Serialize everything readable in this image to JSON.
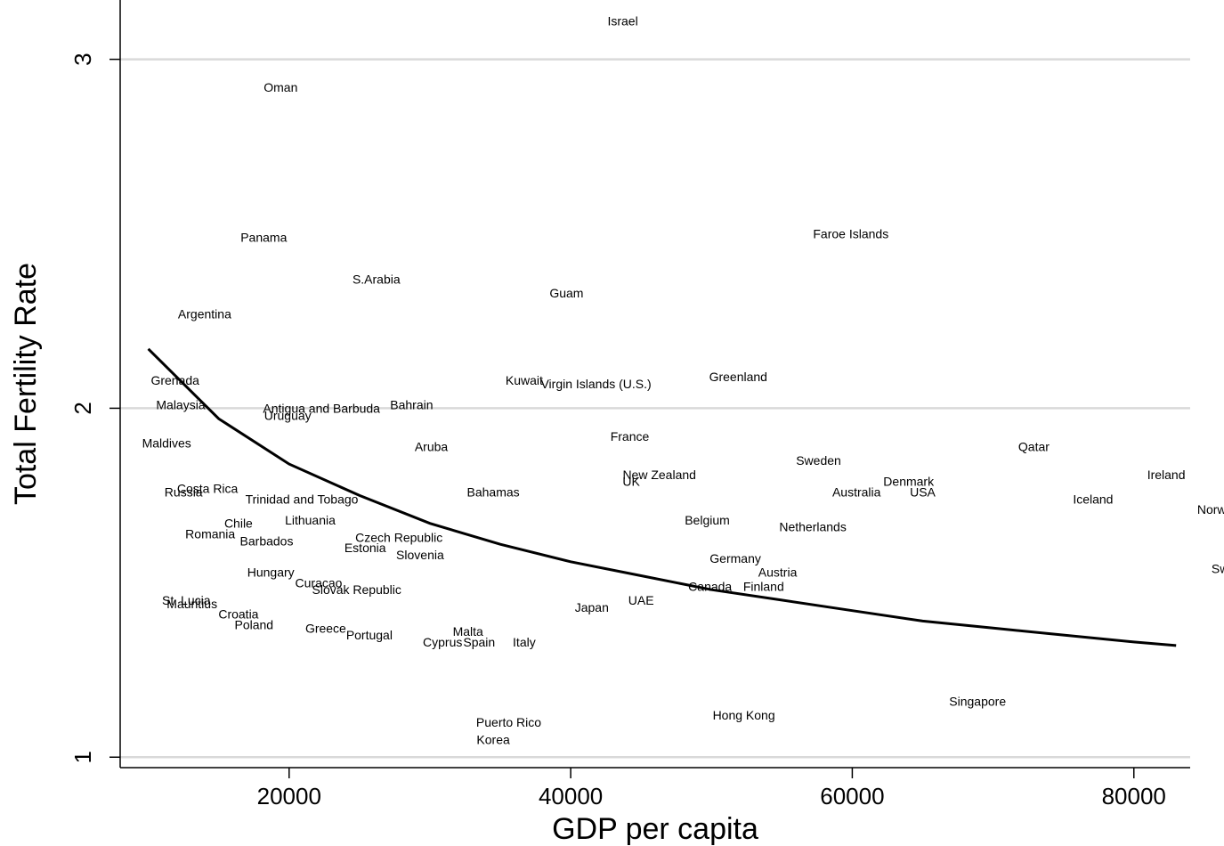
{
  "chart_data": {
    "type": "scatter",
    "xlabel": "GDP per capita",
    "ylabel": "Total Fertility Rate",
    "xlim": [
      8000,
      84000
    ],
    "ylim": [
      0.97,
      3.17
    ],
    "xticks": [
      20000,
      40000,
      60000,
      80000
    ],
    "yticks": [
      1,
      2,
      3
    ],
    "grid": "horizontal",
    "colors": {
      "axis": "#000000",
      "grid": "#d9d9d9",
      "line": "#000000",
      "text": "#000000"
    },
    "points": [
      {
        "label": "Israel",
        "x": 43700,
        "y": 3.11
      },
      {
        "label": "Oman",
        "x": 19400,
        "y": 2.92
      },
      {
        "label": "Panama",
        "x": 18200,
        "y": 2.49
      },
      {
        "label": "Faroe Islands",
        "x": 59900,
        "y": 2.5
      },
      {
        "label": "S.Arabia",
        "x": 26200,
        "y": 2.37
      },
      {
        "label": "Guam",
        "x": 39700,
        "y": 2.33
      },
      {
        "label": "Argentina",
        "x": 14000,
        "y": 2.27
      },
      {
        "label": "Grenada",
        "x": 11900,
        "y": 2.08
      },
      {
        "label": "Kuwait",
        "x": 36700,
        "y": 2.08
      },
      {
        "label": "Virgin Islands (U.S.)",
        "x": 41800,
        "y": 2.07
      },
      {
        "label": "Greenland",
        "x": 51900,
        "y": 2.09
      },
      {
        "label": "Malaysia",
        "x": 12300,
        "y": 2.01
      },
      {
        "label": "Antigua and Barbuda",
        "x": 22300,
        "y": 2.0
      },
      {
        "label": "Bahrain",
        "x": 28700,
        "y": 2.01
      },
      {
        "label": "Uruguay",
        "x": 19900,
        "y": 1.98
      },
      {
        "label": "Maldives",
        "x": 11300,
        "y": 1.9
      },
      {
        "label": "France",
        "x": 44200,
        "y": 1.92
      },
      {
        "label": "Aruba",
        "x": 30100,
        "y": 1.89
      },
      {
        "label": "Qatar",
        "x": 72900,
        "y": 1.89
      },
      {
        "label": "Sweden",
        "x": 57600,
        "y": 1.85
      },
      {
        "label": "New Zealand",
        "x": 46300,
        "y": 1.81
      },
      {
        "label": "Ireland",
        "x": 82300,
        "y": 1.81
      },
      {
        "label": "UK",
        "x": 44300,
        "y": 1.79
      },
      {
        "label": "Denmark",
        "x": 64000,
        "y": 1.79
      },
      {
        "label": "Costa Rica",
        "x": 14200,
        "y": 1.77
      },
      {
        "label": "Australia",
        "x": 60300,
        "y": 1.76
      },
      {
        "label": "USA",
        "x": 65000,
        "y": 1.76
      },
      {
        "label": "Russia",
        "x": 12500,
        "y": 1.76
      },
      {
        "label": "Bahamas",
        "x": 34500,
        "y": 1.76
      },
      {
        "label": "Trinidad and Tobago",
        "x": 20900,
        "y": 1.74
      },
      {
        "label": "Iceland",
        "x": 77100,
        "y": 1.74
      },
      {
        "label": "Lithuania",
        "x": 21500,
        "y": 1.68
      },
      {
        "label": "Norway",
        "x": 86000,
        "y": 1.71
      },
      {
        "label": "Chile",
        "x": 16400,
        "y": 1.67
      },
      {
        "label": "Belgium",
        "x": 49700,
        "y": 1.68
      },
      {
        "label": "Netherlands",
        "x": 57200,
        "y": 1.66
      },
      {
        "label": "Romania",
        "x": 14400,
        "y": 1.64
      },
      {
        "label": "Czech Republic",
        "x": 27800,
        "y": 1.63
      },
      {
        "label": "Barbados",
        "x": 18400,
        "y": 1.62
      },
      {
        "label": "Estonia",
        "x": 25400,
        "y": 1.6
      },
      {
        "label": "Slovenia",
        "x": 29300,
        "y": 1.58
      },
      {
        "label": "Germany",
        "x": 51700,
        "y": 1.57
      },
      {
        "label": "Switzerland",
        "x": 87800,
        "y": 1.54
      },
      {
        "label": "Hungary",
        "x": 18700,
        "y": 1.53
      },
      {
        "label": "Austria",
        "x": 54700,
        "y": 1.53
      },
      {
        "label": "Curacao",
        "x": 22100,
        "y": 1.5
      },
      {
        "label": "Canada",
        "x": 49900,
        "y": 1.49
      },
      {
        "label": "Finland",
        "x": 53700,
        "y": 1.49
      },
      {
        "label": "Slovak Republic",
        "x": 24800,
        "y": 1.48
      },
      {
        "label": "St. Lucia",
        "x": 12700,
        "y": 1.45
      },
      {
        "label": "Mauritius",
        "x": 13100,
        "y": 1.44
      },
      {
        "label": "UAE",
        "x": 45000,
        "y": 1.45
      },
      {
        "label": "Japan",
        "x": 41500,
        "y": 1.43
      },
      {
        "label": "Croatia",
        "x": 16400,
        "y": 1.41
      },
      {
        "label": "Poland",
        "x": 17500,
        "y": 1.38
      },
      {
        "label": "Greece",
        "x": 22600,
        "y": 1.37
      },
      {
        "label": "Malta",
        "x": 32700,
        "y": 1.36
      },
      {
        "label": "Portugal",
        "x": 25700,
        "y": 1.35
      },
      {
        "label": "Spain",
        "x": 33500,
        "y": 1.33
      },
      {
        "label": "Italy",
        "x": 36700,
        "y": 1.33
      },
      {
        "label": "Cyprus",
        "x": 30900,
        "y": 1.33
      },
      {
        "label": "Singapore",
        "x": 68900,
        "y": 1.16
      },
      {
        "label": "Hong Kong",
        "x": 52300,
        "y": 1.12
      },
      {
        "label": "Puerto Rico",
        "x": 35600,
        "y": 1.1
      },
      {
        "label": "Korea",
        "x": 34500,
        "y": 1.05
      }
    ],
    "fit_line": [
      {
        "x": 10000,
        "y": 2.17
      },
      {
        "x": 15000,
        "y": 1.97
      },
      {
        "x": 20000,
        "y": 1.84
      },
      {
        "x": 25000,
        "y": 1.75
      },
      {
        "x": 30000,
        "y": 1.67
      },
      {
        "x": 35000,
        "y": 1.61
      },
      {
        "x": 40000,
        "y": 1.56
      },
      {
        "x": 45000,
        "y": 1.52
      },
      {
        "x": 50000,
        "y": 1.48
      },
      {
        "x": 55000,
        "y": 1.45
      },
      {
        "x": 60000,
        "y": 1.42
      },
      {
        "x": 65000,
        "y": 1.39
      },
      {
        "x": 70000,
        "y": 1.37
      },
      {
        "x": 75000,
        "y": 1.35
      },
      {
        "x": 80000,
        "y": 1.33
      },
      {
        "x": 83000,
        "y": 1.32
      }
    ]
  }
}
